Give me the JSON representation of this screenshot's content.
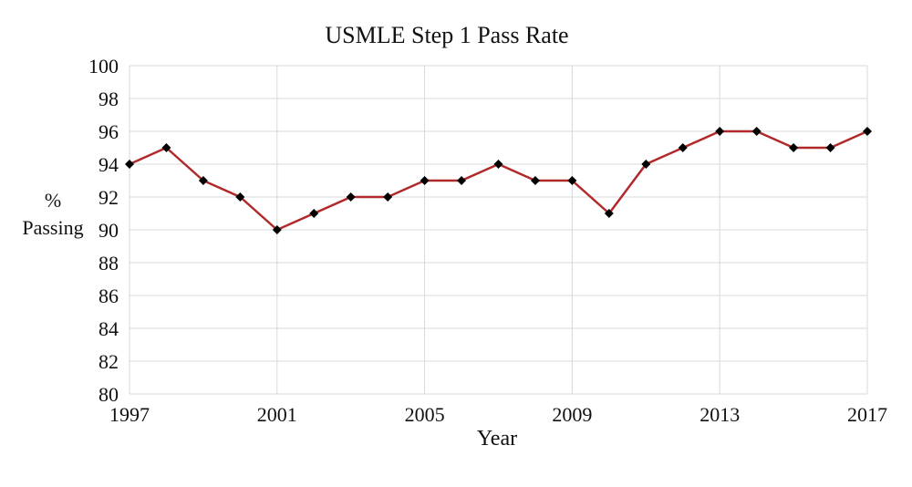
{
  "chart_data": {
    "type": "line",
    "title": "USMLE Step 1 Pass Rate",
    "xlabel": "Year",
    "ylabel": "% Passing",
    "ylabel_lines": [
      "%",
      "Passing"
    ],
    "x": [
      1997,
      1998,
      1999,
      2000,
      2001,
      2002,
      2003,
      2004,
      2005,
      2006,
      2007,
      2008,
      2009,
      2010,
      2011,
      2012,
      2013,
      2014,
      2015,
      2016,
      2017
    ],
    "series": [
      {
        "name": "USMLE Step 1 Pass Rate",
        "values": [
          94,
          95,
          93,
          92,
          90,
          91,
          92,
          92,
          93,
          93,
          94,
          93,
          93,
          91,
          94,
          95,
          96,
          96,
          95,
          95,
          96
        ]
      }
    ],
    "ylim": [
      80,
      100
    ],
    "yticks": [
      80,
      82,
      84,
      86,
      88,
      90,
      92,
      94,
      96,
      98,
      100
    ],
    "xticks": [
      1997,
      2001,
      2005,
      2009,
      2013,
      2017
    ],
    "grid": true,
    "legend": "none",
    "line_color": "#b02a2b",
    "marker": "diamond",
    "marker_color": "#000000",
    "gridline_color": "#d9d9d9",
    "background_color": "#ffffff"
  }
}
